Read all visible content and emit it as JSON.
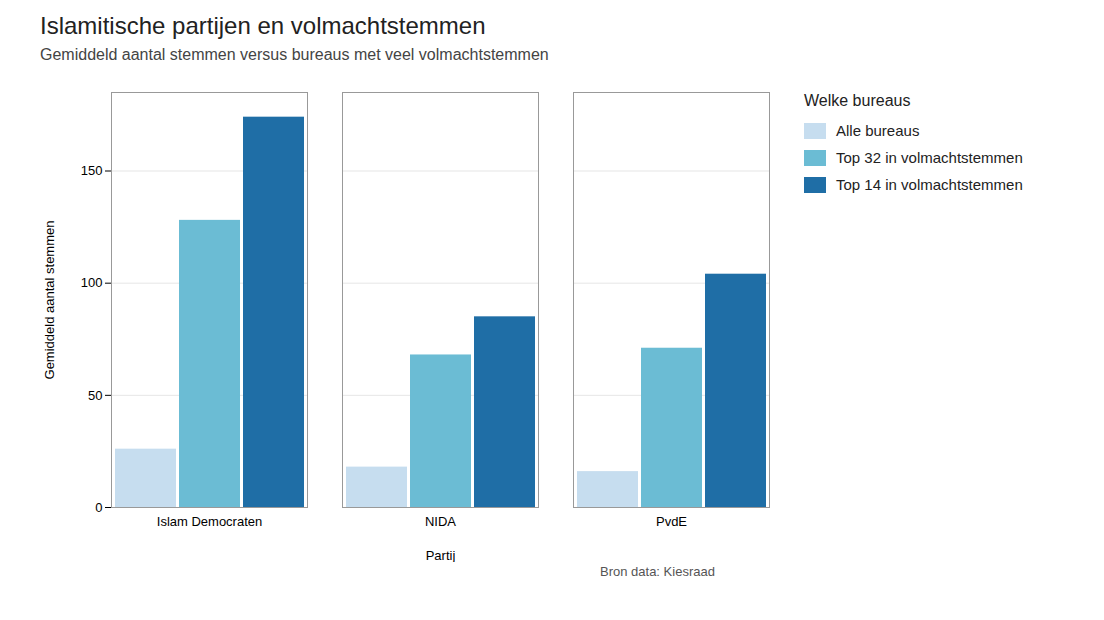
{
  "chart_data": {
    "type": "bar",
    "title": "Islamitische partijen en volmachtstemmen",
    "subtitle": "Gemiddeld aantal stemmen versus bureaus met veel volmachtstemmen",
    "xlabel": "Partij",
    "ylabel": "Gemiddeld aantal stemmen",
    "source": "Bron data: Kiesraad",
    "legend_title": "Welke bureaus",
    "categories": [
      "Islam Democraten",
      "NIDA",
      "PvdE"
    ],
    "series": [
      {
        "name": "Alle bureaus",
        "color": "#c6ddef",
        "values": [
          26,
          18,
          16
        ]
      },
      {
        "name": "Top 32 in volmachtstemmen",
        "color": "#6bbcd4",
        "values": [
          128,
          68,
          71
        ]
      },
      {
        "name": "Top 14 in volmachtstemmen",
        "color": "#1f6ea6",
        "values": [
          174,
          85,
          104
        ]
      }
    ],
    "ylim": [
      0,
      185
    ],
    "yticks": [
      0,
      50,
      100,
      150
    ],
    "grid": true,
    "legend": "right"
  }
}
